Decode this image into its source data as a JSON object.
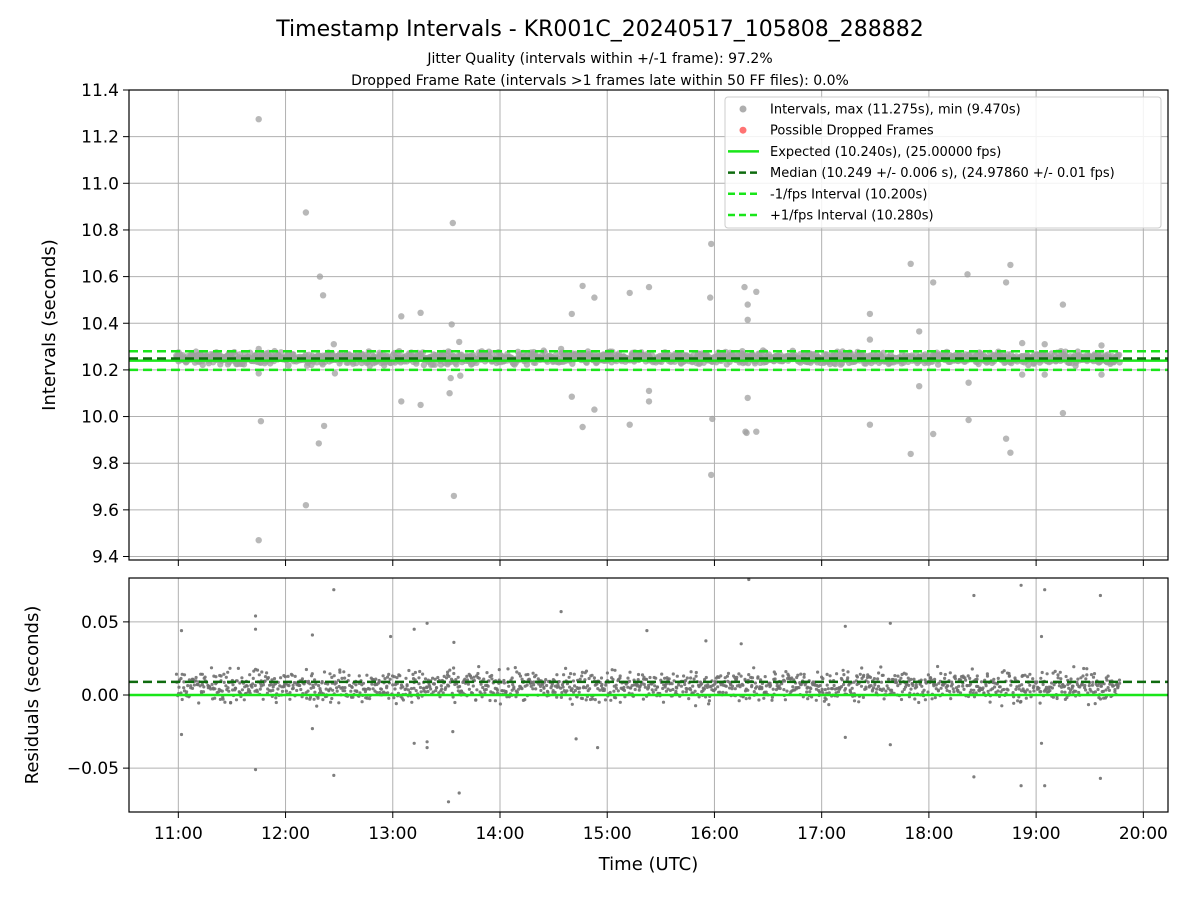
{
  "title": "Timestamp Intervals - KR001C_20240517_105808_288882",
  "subtitle_lines": [
    "Jitter Quality (intervals within +/-1 frame): 97.2%",
    "Dropped Frame Rate (intervals >1 frames late within 50 FF files): 0.0%"
  ],
  "colors": {
    "points": "#a0a0a0",
    "residual_points": "#707070",
    "dropped": "#ff5b5b",
    "expected": "#19e619",
    "median": "#0f6b0f",
    "fps_interval": "#19e619",
    "grid": "#b0b0b0"
  },
  "chart_data": [
    {
      "type": "scatter",
      "panel": "top",
      "xlabel": "",
      "ylabel": "Intervals (seconds)",
      "xlim": [
        10.54,
        20.23
      ],
      "ylim": [
        9.385,
        11.4
      ],
      "x_ticks": [
        {
          "value": 11,
          "label": "11:00"
        },
        {
          "value": 12,
          "label": "12:00"
        },
        {
          "value": 13,
          "label": "13:00"
        },
        {
          "value": 14,
          "label": "14:00"
        },
        {
          "value": 15,
          "label": "15:00"
        },
        {
          "value": 16,
          "label": "16:00"
        },
        {
          "value": 17,
          "label": "17:00"
        },
        {
          "value": 18,
          "label": "18:00"
        },
        {
          "value": 19,
          "label": "19:00"
        },
        {
          "value": 20,
          "label": "20:00"
        }
      ],
      "y_ticks": [
        {
          "value": 9.4,
          "label": "9.4"
        },
        {
          "value": 9.6,
          "label": "9.6"
        },
        {
          "value": 9.8,
          "label": "9.8"
        },
        {
          "value": 10.0,
          "label": "10.0"
        },
        {
          "value": 10.2,
          "label": "10.2"
        },
        {
          "value": 10.4,
          "label": "10.4"
        },
        {
          "value": 10.6,
          "label": "10.6"
        },
        {
          "value": 10.8,
          "label": "10.8"
        },
        {
          "value": 11.0,
          "label": "11.0"
        },
        {
          "value": 11.2,
          "label": "11.2"
        },
        {
          "value": 11.4,
          "label": "11.4"
        }
      ],
      "grid": true,
      "legend_position": "top-right",
      "legend": [
        {
          "label": "Intervals, max (11.275s), min (9.470s)",
          "marker": "circle",
          "color": "#a0a0a0"
        },
        {
          "label": "Possible Dropped Frames",
          "marker": "circle",
          "color": "#ff5b5b"
        },
        {
          "label": "Expected (10.240s), (25.00000 fps)",
          "marker": "line",
          "color": "#19e619",
          "dash": "solid"
        },
        {
          "label": "Median (10.249 +/- 0.006 s), (24.97860 +/- 0.01 fps)",
          "marker": "line",
          "color": "#0f6b0f",
          "dash": "dashed"
        },
        {
          "label": "-1/fps Interval (10.200s)",
          "marker": "line",
          "color": "#19e619",
          "dash": "dashed"
        },
        {
          "label": "+1/fps Interval (10.280s)",
          "marker": "line",
          "color": "#19e619",
          "dash": "dashed"
        }
      ],
      "reference_lines": [
        {
          "name": "Expected",
          "y": 10.24,
          "color": "#19e619",
          "dash": "solid"
        },
        {
          "name": "Median",
          "y": 10.249,
          "color": "#0f6b0f",
          "dash": "dashed"
        },
        {
          "name": "-1/fps",
          "y": 10.2,
          "color": "#19e619",
          "dash": "dashed"
        },
        {
          "name": "+1/fps",
          "y": 10.28,
          "color": "#19e619",
          "dash": "dashed"
        }
      ],
      "band": {
        "x_start": 10.98,
        "x_end": 19.78,
        "y_center": 10.25,
        "spread": 0.022
      },
      "outliers": [
        [
          11.75,
          11.275
        ],
        [
          11.75,
          9.47
        ],
        [
          11.77,
          9.98
        ],
        [
          12.19,
          10.875
        ],
        [
          12.19,
          9.62
        ],
        [
          12.32,
          10.6
        ],
        [
          12.35,
          10.52
        ],
        [
          12.31,
          9.885
        ],
        [
          12.36,
          9.96
        ],
        [
          12.45,
          10.31
        ],
        [
          13.08,
          10.43
        ],
        [
          13.08,
          10.065
        ],
        [
          13.26,
          10.445
        ],
        [
          13.26,
          10.05
        ],
        [
          13.56,
          10.83
        ],
        [
          13.55,
          10.395
        ],
        [
          13.53,
          10.1
        ],
        [
          13.57,
          9.66
        ],
        [
          13.54,
          10.165
        ],
        [
          13.62,
          10.32
        ],
        [
          13.63,
          10.175
        ],
        [
          14.67,
          10.44
        ],
        [
          14.67,
          10.085
        ],
        [
          14.77,
          10.56
        ],
        [
          14.88,
          10.51
        ],
        [
          14.77,
          9.955
        ],
        [
          14.88,
          10.03
        ],
        [
          15.21,
          10.53
        ],
        [
          15.21,
          9.965
        ],
        [
          15.39,
          10.555
        ],
        [
          15.39,
          10.11
        ],
        [
          15.39,
          10.065
        ],
        [
          15.97,
          10.74
        ],
        [
          15.96,
          10.51
        ],
        [
          15.98,
          9.99
        ],
        [
          15.97,
          9.75
        ],
        [
          16.28,
          10.555
        ],
        [
          16.31,
          10.48
        ],
        [
          16.31,
          10.415
        ],
        [
          16.39,
          10.535
        ],
        [
          16.31,
          10.08
        ],
        [
          16.29,
          9.935
        ],
        [
          16.39,
          9.935
        ],
        [
          16.3,
          9.93
        ],
        [
          17.45,
          10.44
        ],
        [
          17.45,
          10.33
        ],
        [
          17.45,
          9.965
        ],
        [
          17.83,
          10.655
        ],
        [
          17.91,
          10.365
        ],
        [
          17.91,
          10.13
        ],
        [
          17.83,
          9.84
        ],
        [
          18.04,
          10.575
        ],
        [
          18.04,
          9.925
        ],
        [
          18.36,
          10.61
        ],
        [
          18.37,
          10.145
        ],
        [
          18.37,
          9.985
        ],
        [
          18.72,
          10.575
        ],
        [
          18.76,
          10.65
        ],
        [
          18.72,
          9.905
        ],
        [
          18.76,
          9.845
        ],
        [
          18.87,
          10.315
        ],
        [
          18.87,
          10.18
        ],
        [
          19.25,
          10.48
        ],
        [
          19.25,
          10.015
        ],
        [
          19.08,
          10.31
        ],
        [
          19.08,
          10.18
        ],
        [
          19.61,
          10.305
        ],
        [
          19.61,
          10.18
        ],
        [
          11.75,
          10.29
        ],
        [
          11.75,
          10.185
        ],
        [
          12.46,
          10.185
        ],
        [
          13.06,
          10.28
        ],
        [
          13.44,
          10.27
        ],
        [
          14.57,
          10.29
        ],
        [
          16.26,
          10.28
        ]
      ]
    },
    {
      "type": "scatter",
      "panel": "bottom",
      "xlabel": "Time (UTC)",
      "ylabel": "Residuals (seconds)",
      "xlim": [
        10.54,
        20.23
      ],
      "ylim": [
        -0.08,
        0.08
      ],
      "y_ticks": [
        {
          "value": -0.05,
          "label": "−0.05"
        },
        {
          "value": 0.0,
          "label": "0.00"
        },
        {
          "value": 0.05,
          "label": "0.05"
        }
      ],
      "grid": true,
      "reference_lines": [
        {
          "name": "Zero",
          "y": 0.0,
          "color": "#19e619",
          "dash": "solid"
        },
        {
          "name": "Median offset",
          "y": 0.009,
          "color": "#0f6b0f",
          "dash": "dashed"
        }
      ],
      "band": {
        "x_start": 10.98,
        "x_end": 19.78,
        "y_center": 0.006,
        "spread": 0.009
      },
      "outliers": [
        [
          11.03,
          0.044
        ],
        [
          11.03,
          -0.027
        ],
        [
          11.72,
          0.054
        ],
        [
          11.72,
          0.045
        ],
        [
          11.72,
          -0.051
        ],
        [
          12.25,
          0.041
        ],
        [
          12.25,
          -0.023
        ],
        [
          12.45,
          0.072
        ],
        [
          12.45,
          -0.055
        ],
        [
          12.98,
          0.04
        ],
        [
          13.2,
          0.045
        ],
        [
          13.32,
          0.049
        ],
        [
          13.2,
          -0.033
        ],
        [
          13.32,
          -0.036
        ],
        [
          13.32,
          -0.032
        ],
        [
          13.52,
          -0.073
        ],
        [
          13.56,
          -0.025
        ],
        [
          13.62,
          -0.067
        ],
        [
          13.57,
          0.036
        ],
        [
          14.57,
          0.057
        ],
        [
          14.71,
          -0.03
        ],
        [
          14.91,
          -0.036
        ],
        [
          15.37,
          0.044
        ],
        [
          15.92,
          0.037
        ],
        [
          16.32,
          0.079
        ],
        [
          16.25,
          0.035
        ],
        [
          17.22,
          0.047
        ],
        [
          17.22,
          -0.029
        ],
        [
          17.64,
          -0.034
        ],
        [
          17.64,
          0.049
        ],
        [
          18.42,
          0.068
        ],
        [
          18.42,
          -0.056
        ],
        [
          18.86,
          0.075
        ],
        [
          18.86,
          -0.062
        ],
        [
          19.08,
          0.072
        ],
        [
          19.08,
          -0.062
        ],
        [
          19.05,
          0.04
        ],
        [
          19.05,
          -0.033
        ],
        [
          19.6,
          0.068
        ],
        [
          19.6,
          -0.057
        ]
      ]
    }
  ]
}
